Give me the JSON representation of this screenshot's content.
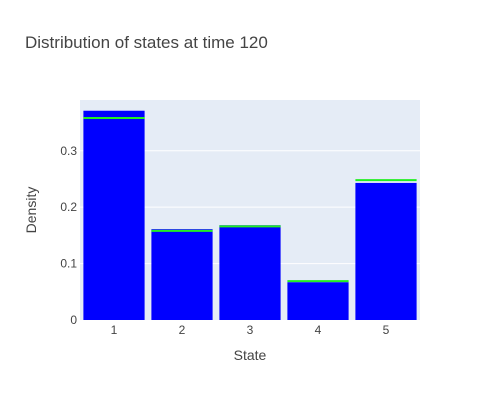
{
  "chart_data": {
    "type": "bar",
    "title": "Distribution of states at time 120",
    "xlabel": "State",
    "ylabel": "Density",
    "categories": [
      "1",
      "2",
      "3",
      "4",
      "5"
    ],
    "series": [
      {
        "values": [
          0.371,
          0.161,
          0.168,
          0.067,
          0.243
        ],
        "color": "#0000ff"
      }
    ],
    "reference_values": [
      0.358,
      0.158,
      0.166,
      0.069,
      0.248
    ],
    "reference_color": "#22ee22",
    "ylim": [
      0,
      0.39
    ],
    "yticks": [
      0,
      0.1,
      0.2,
      0.3
    ],
    "ytick_labels": [
      "0",
      "0.1",
      "0.2",
      "0.3"
    ],
    "grid": true,
    "plot_background": "#e5ecf6"
  }
}
